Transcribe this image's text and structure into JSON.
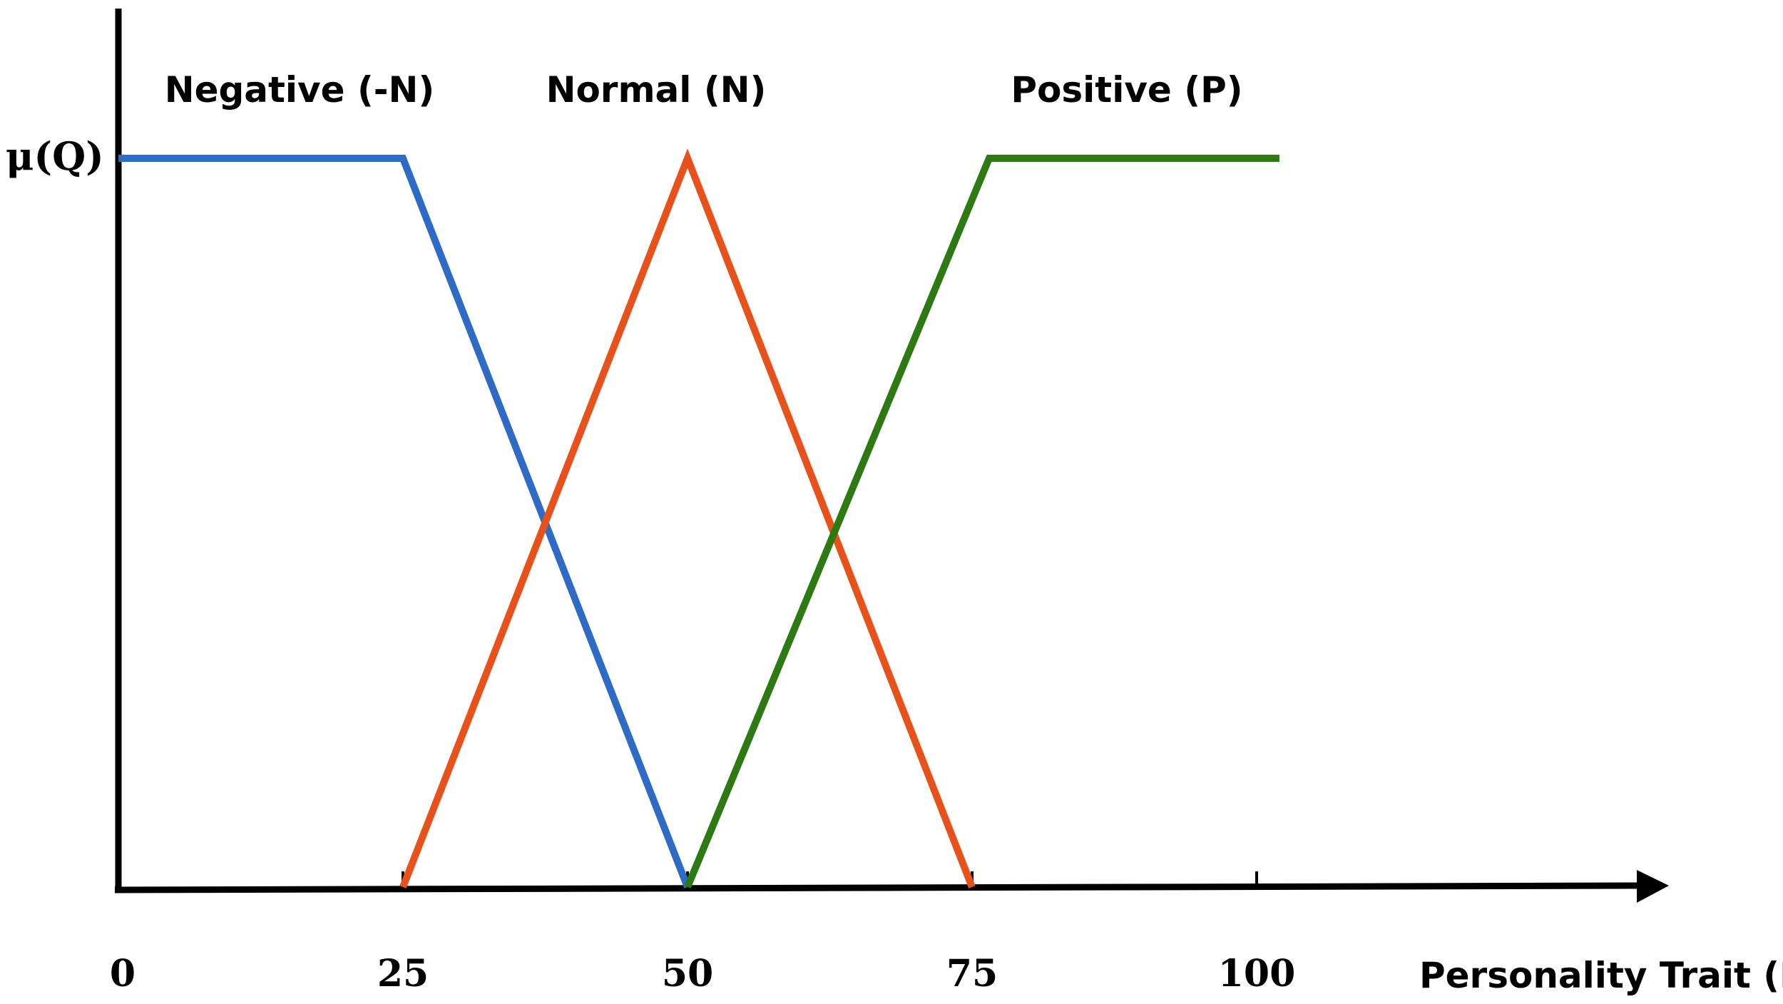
{
  "chart_data": {
    "type": "line",
    "title": "",
    "xlabel": "Personality Trait (R)",
    "ylabel": "μ(Q)",
    "xlim": [
      0,
      100
    ],
    "ylim": [
      0,
      1
    ],
    "x_ticks": [
      "0",
      "25",
      "50",
      "75",
      "100"
    ],
    "grid": false,
    "legend": "labels above curves",
    "series": [
      {
        "name": "Negative (-N)",
        "color": "#2e6bc6",
        "x": [
          0,
          25,
          50
        ],
        "y": [
          1,
          1,
          0
        ]
      },
      {
        "name": "Normal (N)",
        "color": "#e8511a",
        "x": [
          25,
          50,
          75
        ],
        "y": [
          0,
          1,
          0
        ]
      },
      {
        "name": "Positive (P)",
        "color": "#2d7a12",
        "x": [
          50,
          76.5,
          102
        ],
        "y": [
          0,
          1,
          1
        ]
      }
    ]
  }
}
